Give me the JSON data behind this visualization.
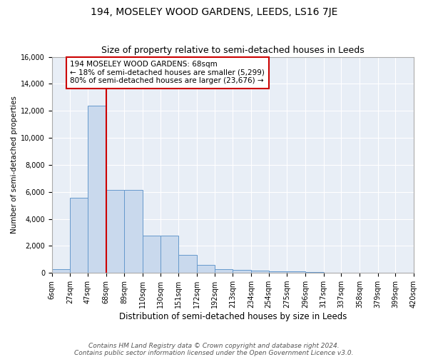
{
  "title": "194, MOSELEY WOOD GARDENS, LEEDS, LS16 7JE",
  "subtitle": "Size of property relative to semi-detached houses in Leeds",
  "xlabel": "Distribution of semi-detached houses by size in Leeds",
  "ylabel": "Number of semi-detached properties",
  "bin_labels": [
    "6sqm",
    "27sqm",
    "47sqm",
    "68sqm",
    "89sqm",
    "110sqm",
    "130sqm",
    "151sqm",
    "172sqm",
    "192sqm",
    "213sqm",
    "234sqm",
    "254sqm",
    "275sqm",
    "296sqm",
    "317sqm",
    "337sqm",
    "358sqm",
    "379sqm",
    "399sqm",
    "420sqm"
  ],
  "bar_heights": [
    250,
    5550,
    12400,
    6150,
    6150,
    2750,
    2750,
    1350,
    600,
    300,
    200,
    150,
    120,
    100,
    80,
    0,
    0,
    0,
    0,
    0
  ],
  "bar_color": "#c9d9ed",
  "bar_edge_color": "#6699cc",
  "vline_x_index": 3,
  "vline_color": "#cc0000",
  "annotation_text": "194 MOSELEY WOOD GARDENS: 68sqm\n← 18% of semi-detached houses are smaller (5,299)\n80% of semi-detached houses are larger (23,676) →",
  "annotation_box_color": "#ffffff",
  "annotation_box_edge": "#cc0000",
  "ylim": [
    0,
    16000
  ],
  "yticks": [
    0,
    2000,
    4000,
    6000,
    8000,
    10000,
    12000,
    14000,
    16000
  ],
  "background_color": "#e8eef6",
  "footer_text": "Contains HM Land Registry data © Crown copyright and database right 2024.\nContains public sector information licensed under the Open Government Licence v3.0.",
  "title_fontsize": 10,
  "subtitle_fontsize": 9,
  "xlabel_fontsize": 8.5,
  "ylabel_fontsize": 7.5,
  "tick_fontsize": 7,
  "annotation_fontsize": 7.5,
  "footer_fontsize": 6.5
}
